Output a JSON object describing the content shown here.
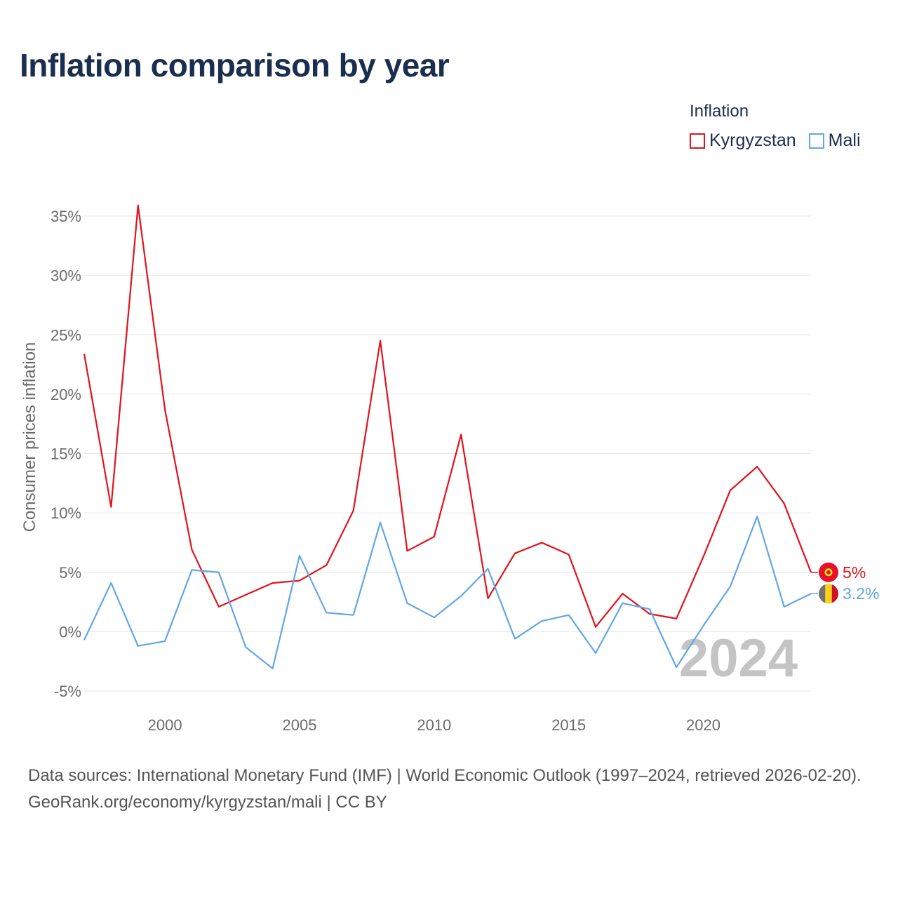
{
  "title": "Inflation comparison by year",
  "legend": {
    "title": "Inflation",
    "items": [
      {
        "label": "Kyrgyzstan",
        "color": "#e3121b"
      },
      {
        "label": "Mali",
        "color": "#62a6e8"
      }
    ]
  },
  "chart_data": {
    "type": "line",
    "title": "Inflation comparison by year",
    "xlabel": "",
    "ylabel": "Consumer prices inflation",
    "x": [
      1997,
      1998,
      1999,
      2000,
      2001,
      2002,
      2003,
      2004,
      2005,
      2006,
      2007,
      2008,
      2009,
      2010,
      2011,
      2012,
      2013,
      2014,
      2015,
      2016,
      2017,
      2018,
      2019,
      2020,
      2021,
      2022,
      2023,
      2024
    ],
    "xlim": [
      1997,
      2024
    ],
    "ylim": [
      -5,
      35
    ],
    "x_ticks": [
      2000,
      2005,
      2010,
      2015,
      2020
    ],
    "y_ticks": [
      -5,
      0,
      5,
      10,
      15,
      20,
      25,
      30,
      35
    ],
    "y_tick_labels": [
      "-5%",
      "0%",
      "5%",
      "10%",
      "15%",
      "20%",
      "25%",
      "30%",
      "35%"
    ],
    "x_tick_labels": [
      "2000",
      "2005",
      "2010",
      "2015",
      "2020"
    ],
    "grid": true,
    "watermark_year": "2024",
    "series": [
      {
        "name": "Kyrgyzstan",
        "color": "#e3121b",
        "values": [
          23.4,
          10.5,
          35.9,
          18.7,
          6.9,
          2.1,
          3.1,
          4.1,
          4.3,
          5.6,
          10.2,
          24.5,
          6.8,
          8.0,
          16.6,
          2.8,
          6.6,
          7.5,
          6.5,
          0.4,
          3.2,
          1.5,
          1.1,
          6.3,
          11.9,
          13.9,
          10.8,
          5.0
        ],
        "end_label": "5%"
      },
      {
        "name": "Mali",
        "color": "#62a6e8",
        "values": [
          -0.7,
          4.1,
          -1.2,
          -0.8,
          5.2,
          5.0,
          -1.3,
          -3.1,
          6.4,
          1.6,
          1.4,
          9.2,
          2.4,
          1.2,
          3.0,
          5.3,
          -0.6,
          0.9,
          1.4,
          -1.8,
          2.4,
          1.9,
          -3.0,
          0.5,
          3.8,
          9.7,
          2.1,
          3.2
        ],
        "end_label": "3.2%"
      }
    ]
  },
  "footer": {
    "sources": "Data sources: International Monetary Fund (IMF) | World Economic Outlook (1997–2024, retrieved 2026-02-20).",
    "credit": "GeoRank.org/economy/kyrgyzstan/mali | CC BY"
  }
}
